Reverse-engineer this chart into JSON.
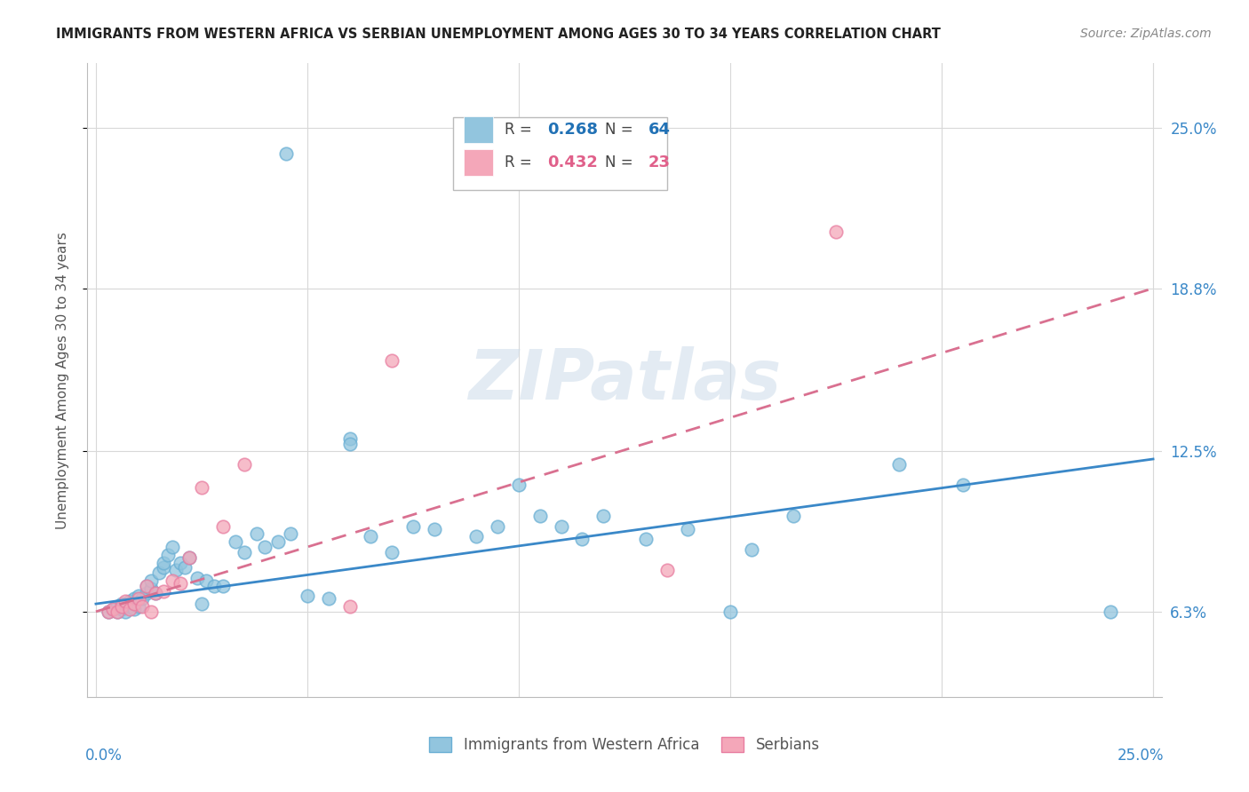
{
  "title": "IMMIGRANTS FROM WESTERN AFRICA VS SERBIAN UNEMPLOYMENT AMONG AGES 30 TO 34 YEARS CORRELATION CHART",
  "source": "Source: ZipAtlas.com",
  "ylabel": "Unemployment Among Ages 30 to 34 years",
  "ytick_labels": [
    "6.3%",
    "12.5%",
    "18.8%",
    "25.0%"
  ],
  "ytick_values": [
    0.063,
    0.125,
    0.188,
    0.25
  ],
  "xlim": [
    0.0,
    0.25
  ],
  "ylim": [
    0.03,
    0.275
  ],
  "color_blue": "#92c5de",
  "color_blue_edge": "#6aafd4",
  "color_pink": "#f4a7b9",
  "color_pink_edge": "#e87da0",
  "color_blue_line": "#3a88c8",
  "color_pink_line": "#d97090",
  "watermark": "ZIPatlas",
  "legend_r1": "R = ",
  "legend_v1": "0.268",
  "legend_n1_label": "N = ",
  "legend_n1_val": "64",
  "legend_r2": "R = ",
  "legend_v2": "0.432",
  "legend_n2_label": "N = ",
  "legend_n2_val": "23",
  "blue_x": [
    0.003,
    0.004,
    0.005,
    0.005,
    0.006,
    0.006,
    0.007,
    0.007,
    0.008,
    0.008,
    0.009,
    0.009,
    0.01,
    0.01,
    0.011,
    0.012,
    0.012,
    0.013,
    0.013,
    0.014,
    0.015,
    0.016,
    0.016,
    0.017,
    0.018,
    0.019,
    0.02,
    0.021,
    0.022,
    0.024,
    0.026,
    0.028,
    0.03,
    0.033,
    0.035,
    0.038,
    0.04,
    0.043,
    0.046,
    0.05,
    0.055,
    0.06,
    0.065,
    0.07,
    0.075,
    0.08,
    0.09,
    0.095,
    0.1,
    0.105,
    0.11,
    0.115,
    0.12,
    0.13,
    0.14,
    0.155,
    0.165,
    0.19,
    0.205,
    0.24,
    0.045,
    0.06,
    0.025,
    0.15
  ],
  "blue_y": [
    0.063,
    0.064,
    0.063,
    0.065,
    0.064,
    0.066,
    0.063,
    0.066,
    0.065,
    0.067,
    0.064,
    0.068,
    0.065,
    0.069,
    0.068,
    0.07,
    0.073,
    0.072,
    0.075,
    0.07,
    0.078,
    0.08,
    0.082,
    0.085,
    0.088,
    0.079,
    0.082,
    0.08,
    0.084,
    0.076,
    0.075,
    0.073,
    0.073,
    0.09,
    0.086,
    0.093,
    0.088,
    0.09,
    0.093,
    0.069,
    0.068,
    0.13,
    0.092,
    0.086,
    0.096,
    0.095,
    0.092,
    0.096,
    0.112,
    0.1,
    0.096,
    0.091,
    0.1,
    0.091,
    0.095,
    0.087,
    0.1,
    0.12,
    0.112,
    0.063,
    0.24,
    0.128,
    0.066,
    0.063
  ],
  "pink_x": [
    0.003,
    0.004,
    0.005,
    0.006,
    0.007,
    0.008,
    0.009,
    0.01,
    0.011,
    0.012,
    0.013,
    0.014,
    0.016,
    0.018,
    0.02,
    0.022,
    0.025,
    0.03,
    0.035,
    0.06,
    0.07,
    0.135,
    0.175
  ],
  "pink_y": [
    0.063,
    0.064,
    0.063,
    0.065,
    0.067,
    0.064,
    0.066,
    0.068,
    0.065,
    0.073,
    0.063,
    0.07,
    0.071,
    0.075,
    0.074,
    0.084,
    0.111,
    0.096,
    0.12,
    0.065,
    0.16,
    0.079,
    0.21
  ],
  "blue_line_x": [
    0.0,
    0.25
  ],
  "blue_line_y": [
    0.066,
    0.122
  ],
  "pink_line_x": [
    0.0,
    0.25
  ],
  "pink_line_y": [
    0.063,
    0.188
  ]
}
